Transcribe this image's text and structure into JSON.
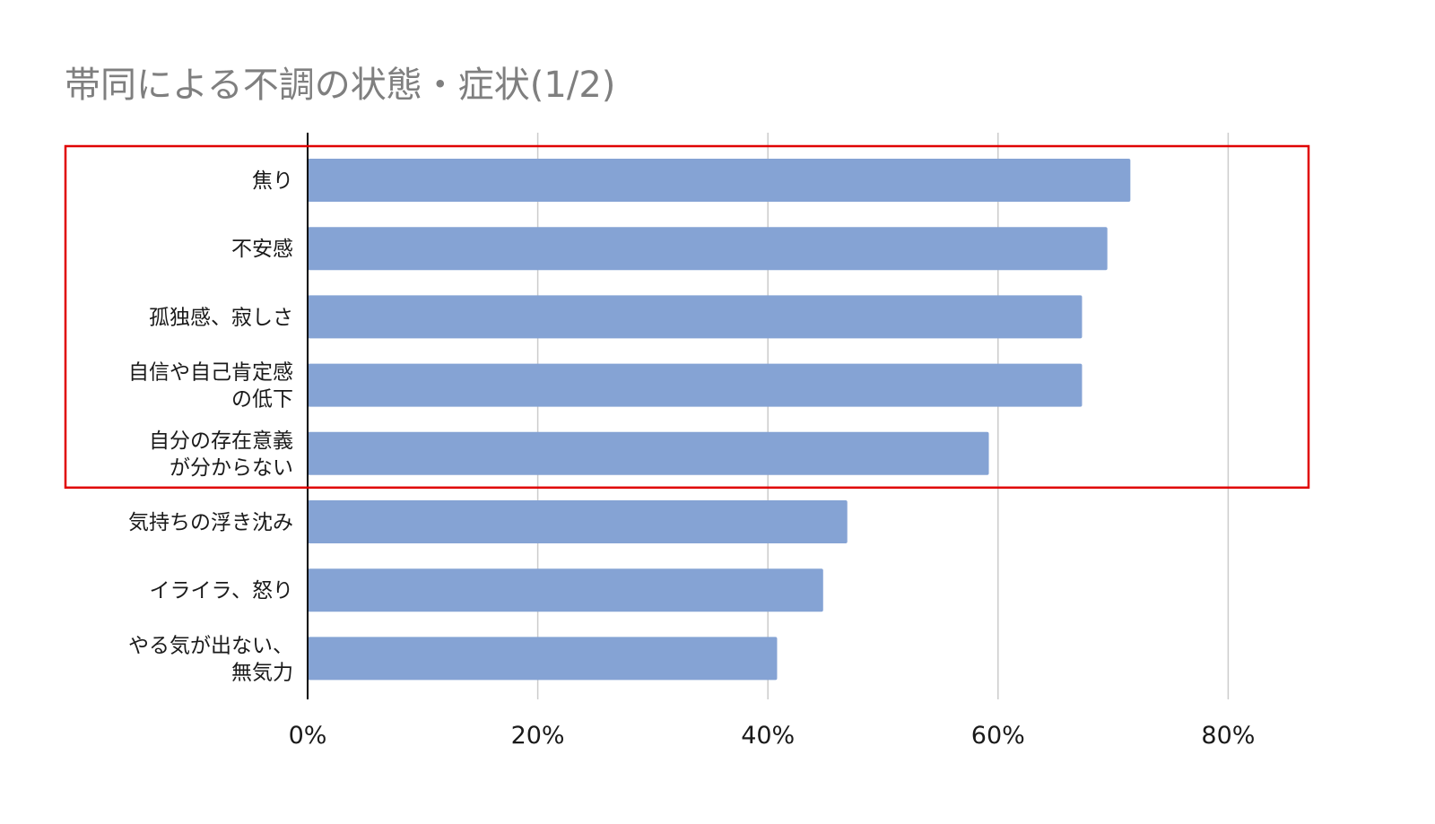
{
  "chart_data": {
    "type": "bar",
    "orientation": "horizontal",
    "title": "帯同による不調の状態・症状(1/2)",
    "categories": [
      "焦り",
      "不安感",
      "孤独感、寂しさ",
      "自信や自己肯定感\nの低下",
      "自分の存在意義\nが分からない",
      "気持ちの浮き沈み",
      "イライラ、怒り",
      "やる気が出ない、\n無気力"
    ],
    "values": [
      71.5,
      69.5,
      67.3,
      67.3,
      59.2,
      46.9,
      44.8,
      40.8
    ],
    "unit": "%",
    "xlim": [
      0,
      80
    ],
    "x_ticks": [
      "0%",
      "20%",
      "40%",
      "60%",
      "80%"
    ],
    "grid": true,
    "highlight": {
      "label": "red box around top 5 categories",
      "color": "#e00000",
      "from_index": 0,
      "to_index": 4
    },
    "colors": {
      "bar": "#85a3d4",
      "grid": "#cccccc",
      "axis": "#000000",
      "title": "#7f7f7f"
    }
  }
}
